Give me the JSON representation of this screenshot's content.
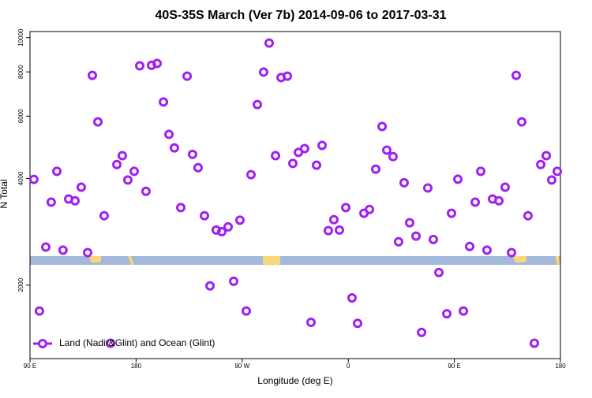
{
  "chart_data": {
    "type": "scatter",
    "title": "40S-35S March (Ver 7b)   2014-09-06 to 2017-03-31",
    "xlabel": "Longitude (deg E)",
    "ylabel": "N Total",
    "x": [
      93.3,
      98,
      103.4,
      108,
      112.8,
      118,
      122.8,
      128.2,
      133.5,
      138.9,
      142.9,
      147.6,
      152.9,
      158.3,
      163.7,
      168.3,
      173,
      178.4,
      183.1,
      188.4,
      193.1,
      197.8,
      203.2,
      207.9,
      212.5,
      217.9,
      223.3,
      227.9,
      232.6,
      238,
      242.7,
      248,
      252.7,
      258.1,
      262.8,
      268.1,
      273.5,
      277.5,
      282.9,
      288.2,
      292.9,
      298.3,
      303,
      308.3,
      313,
      317.7,
      323,
      328.4,
      333.1,
      337.8,
      343.1,
      347.8,
      352.5,
      357.9,
      363.2,
      367.9,
      373.3,
      378,
      383.3,
      388.7,
      392.7,
      398,
      402.7,
      407.4,
      412.1,
      417.5,
      422.2,
      427.5,
      432.2,
      436.9,
      443.6,
      447.6,
      453,
      457.7,
      463,
      467.7,
      472.4,
      477.7,
      482.4,
      487.8,
      493.1,
      498.5,
      502.5,
      507.2,
      512.5,
      517.9,
      523.3,
      528,
      532.6,
      537.3
    ],
    "series": [
      {
        "name": "Land (Nadir&Glint) and Ocean (Glint)",
        "color": "#a020f0",
        "values": [
          3975,
          1690,
          2560,
          3430,
          4190,
          2510,
          3500,
          3460,
          3780,
          2470,
          7820,
          5780,
          3140,
          1370,
          4380,
          4640,
          3960,
          4190,
          8320,
          3680,
          8350,
          8450,
          6580,
          5330,
          4880,
          3310,
          7780,
          4680,
          4290,
          3140,
          1990,
          2860,
          2830,
          2920,
          2050,
          3050,
          1690,
          4100,
          6470,
          7990,
          9650,
          4640,
          7710,
          7780,
          4410,
          4740,
          4860,
          1570,
          4360,
          4960,
          2850,
          3060,
          2860,
          3310,
          1840,
          1560,
          3190,
          3270,
          4250,
          5610,
          4810,
          4610,
          2650,
          3890,
          3000,
          2750,
          1470,
          3760,
          2690,
          2170,
          1660,
          3190,
          3980,
          1690,
          2570,
          3430,
          4190,
          2510,
          3500,
          3460,
          3780,
          2470,
          7820,
          5780,
          3140,
          1370,
          4380,
          4640,
          3960,
          4190
        ]
      }
    ],
    "xlim": [
      90,
      540
    ],
    "xticks": [
      {
        "value": 90,
        "label": "90 E"
      },
      180,
      {
        "value": 270,
        "label": "90 W"
      },
      {
        "value": 360,
        "label": "0"
      },
      {
        "value": 450,
        "label": "90 E"
      },
      {
        "value": 540,
        "label": "180"
      }
    ],
    "ylim": [
      1240,
      10400
    ],
    "yscale": "log",
    "yticks": [
      2000,
      4000,
      6000,
      8000,
      10000
    ],
    "legend": "lower left"
  }
}
